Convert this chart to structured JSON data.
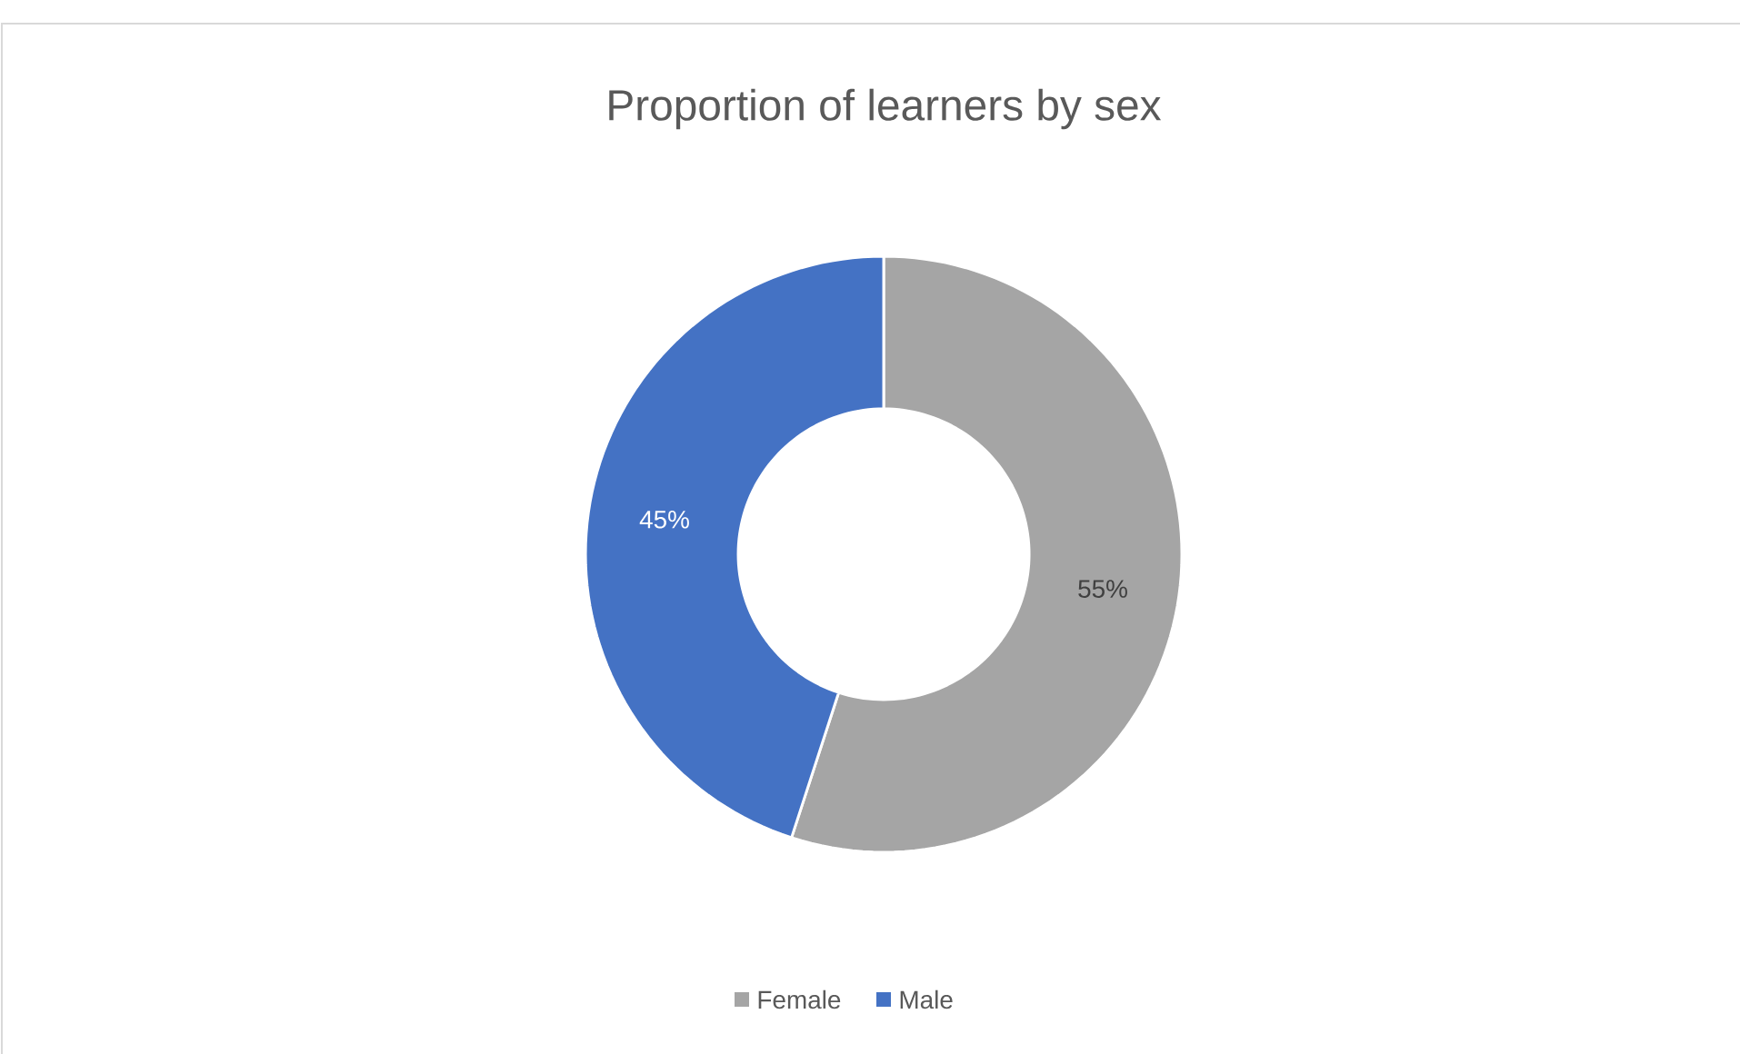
{
  "chart_data": {
    "type": "donut",
    "title": "Proportion of learners by sex",
    "categories": [
      "Female",
      "Male"
    ],
    "values": [
      55,
      45
    ],
    "colors": [
      "#a5a5a5",
      "#4472c4"
    ],
    "value_labels": [
      "55%",
      "45%"
    ],
    "legend": "bottom"
  }
}
